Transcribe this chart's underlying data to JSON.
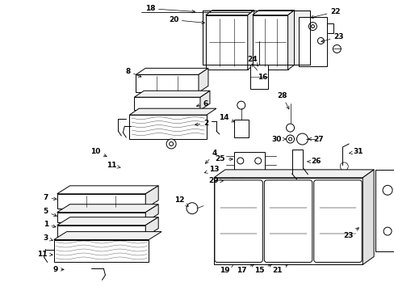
{
  "bg": "#ffffff",
  "lc": "#000000",
  "fig_w": 4.89,
  "fig_h": 3.6,
  "dpi": 100,
  "lw": 0.7,
  "fs": 6.5
}
